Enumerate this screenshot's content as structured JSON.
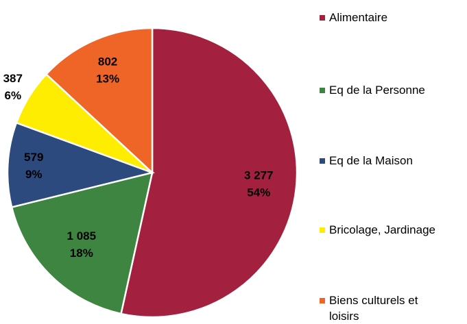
{
  "chart_data": {
    "type": "pie",
    "categories": [
      "Alimentaire",
      "Eq de la Personne",
      "Eq de la Maison",
      "Bricolage, Jardinage",
      "Biens culturels et loisirs"
    ],
    "values": [
      3277,
      1085,
      579,
      387,
      802
    ],
    "value_labels": [
      "3 277",
      "1 085",
      "579",
      "387",
      "802"
    ],
    "percentages": [
      54,
      18,
      9,
      6,
      13
    ],
    "percent_labels": [
      "54%",
      "18%",
      "9%",
      "6%",
      "13%"
    ],
    "colors": [
      "#a4203f",
      "#3e8541",
      "#2d4a7e",
      "#ffed00",
      "#ee6527"
    ],
    "legend": "right"
  }
}
